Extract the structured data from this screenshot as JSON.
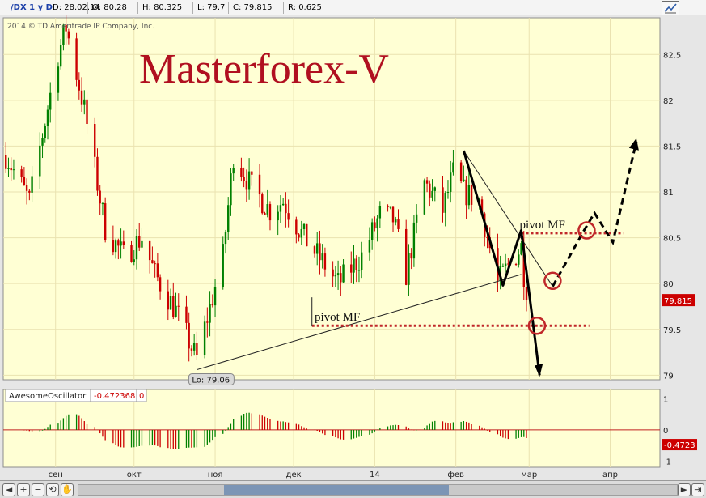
{
  "header": {
    "symbol": "/DX 1 y D",
    "date": "D: 28.02.14",
    "open": "O: 80.28",
    "high": "H: 80.325",
    "low": "L: 79.7",
    "close": "C: 79.815",
    "range": "R: 0.625"
  },
  "copyright": "2014 © TD Ameritrade IP Company, Inc.",
  "watermark": "Masterforex-V",
  "colors": {
    "background": "#ffffd4",
    "up_candle": "#008000",
    "down_candle": "#cc0000",
    "watermark": "#b01020",
    "annotation_red": "#c0282a",
    "price_tag": "#cc0000"
  },
  "icons": {
    "chart_style": "chart-style-icon",
    "pan_left": "arrow-left-icon",
    "zoom_in": "zoom-in-icon",
    "zoom_out": "zoom-out-icon",
    "zoom_reset": "zoom-reset-icon",
    "pan_hand": "hand-icon",
    "pan_right": "arrow-right-icon",
    "scroll_end": "scroll-end-icon"
  },
  "chart_data": {
    "type": "candlestick",
    "title": "",
    "xlabel": "",
    "ylabel": "",
    "ylim": [
      78.95,
      82.9
    ],
    "yticks": [
      79,
      79.5,
      80,
      80.5,
      81,
      81.5,
      82,
      82.5
    ],
    "ytick_labels": [
      "79",
      "79.5",
      "80",
      "80.5",
      "81",
      "81.5",
      "82",
      "82.5"
    ],
    "x_domain": [
      "2013-08-12",
      "2014-04-20"
    ],
    "xticks": [
      {
        "date": "2013-09-01",
        "label": "сен"
      },
      {
        "date": "2013-10-01",
        "label": "окт"
      },
      {
        "date": "2013-11-01",
        "label": "ноя"
      },
      {
        "date": "2013-12-01",
        "label": "дек"
      },
      {
        "date": "2014-01-01",
        "label": "14"
      },
      {
        "date": "2014-02-01",
        "label": "фев"
      },
      {
        "date": "2014-03-01",
        "label": "мар"
      },
      {
        "date": "2014-04-01",
        "label": "апр"
      }
    ],
    "last_price": "79.815",
    "low_label": "Lo: 79.06",
    "grid": true,
    "anchors": [
      {
        "date": "2013-08-13",
        "price": 81.4
      },
      {
        "date": "2013-08-22",
        "price": 80.9
      },
      {
        "date": "2013-09-02",
        "price": 82.5
      },
      {
        "date": "2013-09-05",
        "price": 82.8
      },
      {
        "date": "2013-09-12",
        "price": 81.9
      },
      {
        "date": "2013-09-20",
        "price": 80.6
      },
      {
        "date": "2013-09-27",
        "price": 80.3
      },
      {
        "date": "2013-10-04",
        "price": 80.5
      },
      {
        "date": "2013-10-09",
        "price": 80.1
      },
      {
        "date": "2013-10-17",
        "price": 79.7
      },
      {
        "date": "2013-10-23",
        "price": 79.3
      },
      {
        "date": "2013-10-25",
        "price": 79.18
      },
      {
        "date": "2013-11-04",
        "price": 80.3
      },
      {
        "date": "2013-11-08",
        "price": 81.4
      },
      {
        "date": "2013-11-15",
        "price": 81.05
      },
      {
        "date": "2013-11-22",
        "price": 80.8
      },
      {
        "date": "2013-11-27",
        "price": 80.9
      },
      {
        "date": "2013-12-05",
        "price": 80.5
      },
      {
        "date": "2013-12-13",
        "price": 80.2
      },
      {
        "date": "2013-12-18",
        "price": 80.0
      },
      {
        "date": "2013-12-27",
        "price": 80.3
      },
      {
        "date": "2014-01-03",
        "price": 80.75
      },
      {
        "date": "2014-01-08",
        "price": 80.7
      },
      {
        "date": "2014-01-13",
        "price": 80.1
      },
      {
        "date": "2014-01-20",
        "price": 81.1
      },
      {
        "date": "2014-01-27",
        "price": 80.8
      },
      {
        "date": "2014-01-31",
        "price": 81.2
      },
      {
        "date": "2014-02-04",
        "price": 81.0
      },
      {
        "date": "2014-02-10",
        "price": 80.9
      },
      {
        "date": "2014-02-17",
        "price": 80.0
      },
      {
        "date": "2014-02-21",
        "price": 80.2
      },
      {
        "date": "2014-02-26",
        "price": 80.4
      },
      {
        "date": "2014-02-28",
        "price": 79.82
      }
    ],
    "oscillator": {
      "name": "AwesomeOscillator",
      "value_label": "-0.472368",
      "extra_label": "0",
      "last_value": "-0.4723",
      "ylim": [
        -1.2,
        1.3
      ],
      "yticks": [
        1,
        0,
        -1
      ],
      "ytick_labels": [
        "1",
        "0",
        "-1"
      ]
    },
    "annotations": {
      "pivot_upper_label": "pivot MF",
      "pivot_lower_label": "pivot MF",
      "pivot_upper_level": 80.55,
      "pivot_lower_level": 79.54,
      "support_line": [
        {
          "date": "2013-10-25",
          "price": 79.06
        },
        {
          "date": "2014-02-26",
          "price": 80.1
        }
      ],
      "channel_line": [
        {
          "date": "2014-02-04",
          "price": 81.45
        },
        {
          "date": "2014-03-10",
          "price": 79.97
        }
      ],
      "zigzag": [
        {
          "date": "2014-02-04",
          "price": 81.45
        },
        {
          "date": "2014-02-19",
          "price": 79.98
        },
        {
          "date": "2014-02-26",
          "price": 80.58
        },
        {
          "date": "2014-03-05",
          "price": 79.0
        }
      ],
      "forecast": [
        {
          "date": "2014-03-10",
          "price": 79.97
        },
        {
          "date": "2014-03-22",
          "price": 80.58
        },
        {
          "date": "2014-03-26",
          "price": 80.77
        },
        {
          "date": "2014-04-02",
          "price": 80.45
        },
        {
          "date": "2014-04-11",
          "price": 81.55
        }
      ],
      "circles": [
        {
          "date": "2014-03-04",
          "price": 79.54
        },
        {
          "date": "2014-03-10",
          "price": 80.03
        },
        {
          "date": "2014-03-23",
          "price": 80.58
        }
      ]
    }
  }
}
